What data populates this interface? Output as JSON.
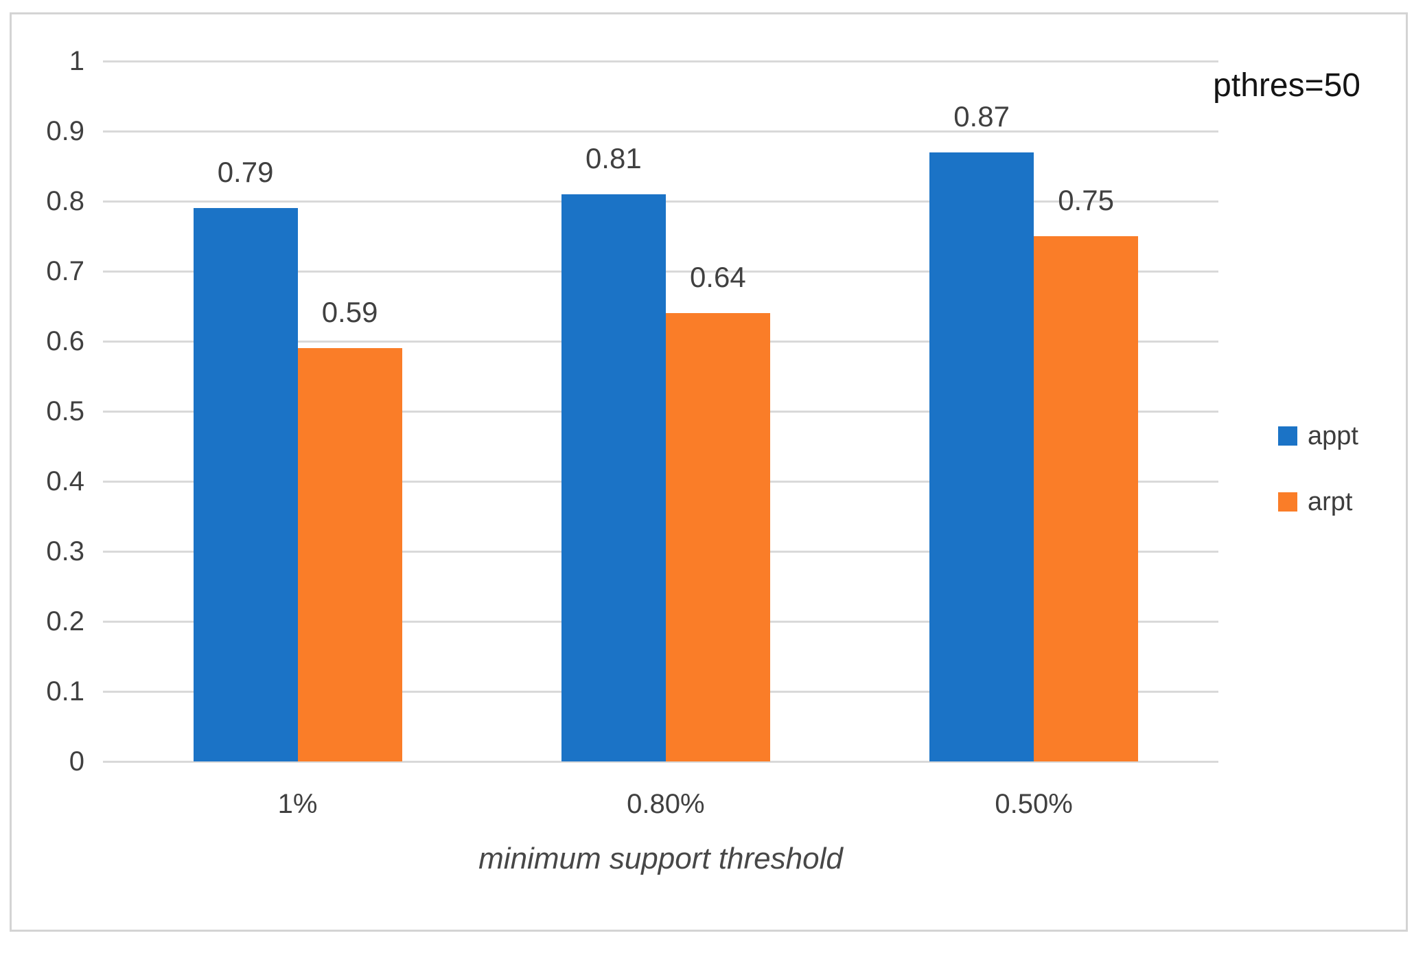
{
  "chart_data": {
    "type": "bar",
    "title": "",
    "annotation": "pthres=50",
    "categories": [
      "1%",
      "0.80%",
      "0.50%"
    ],
    "series": [
      {
        "name": "appt",
        "color": "#1b73c6",
        "values": [
          0.79,
          0.81,
          0.87
        ],
        "labels": [
          "0.79",
          "0.81",
          "0.87"
        ]
      },
      {
        "name": "arpt",
        "color": "#fa7d28",
        "values": [
          0.59,
          0.64,
          0.75
        ],
        "labels": [
          "0.59",
          "0.64",
          "0.75"
        ]
      }
    ],
    "xlabel": "minimum support threshold",
    "ylabel": "",
    "ylim": [
      0,
      1
    ],
    "yticks": [
      {
        "value": 1,
        "label": "1"
      },
      {
        "value": 0.9,
        "label": "0.9"
      },
      {
        "value": 0.8,
        "label": "0.8"
      },
      {
        "value": 0.7,
        "label": "0.7"
      },
      {
        "value": 0.6,
        "label": "0.6"
      },
      {
        "value": 0.5,
        "label": "0.5"
      },
      {
        "value": 0.4,
        "label": "0.4"
      },
      {
        "value": 0.3,
        "label": "0.3"
      },
      {
        "value": 0.2,
        "label": "0.2"
      },
      {
        "value": 0.1,
        "label": "0.1"
      },
      {
        "value": 0,
        "label": "0"
      }
    ],
    "grid": true,
    "legend_position": "right",
    "colors": {
      "gridline": "#d9d9d9",
      "axis_text": "#404040",
      "frame_border": "#d4d4d4",
      "annotation_text": "#141414"
    }
  }
}
